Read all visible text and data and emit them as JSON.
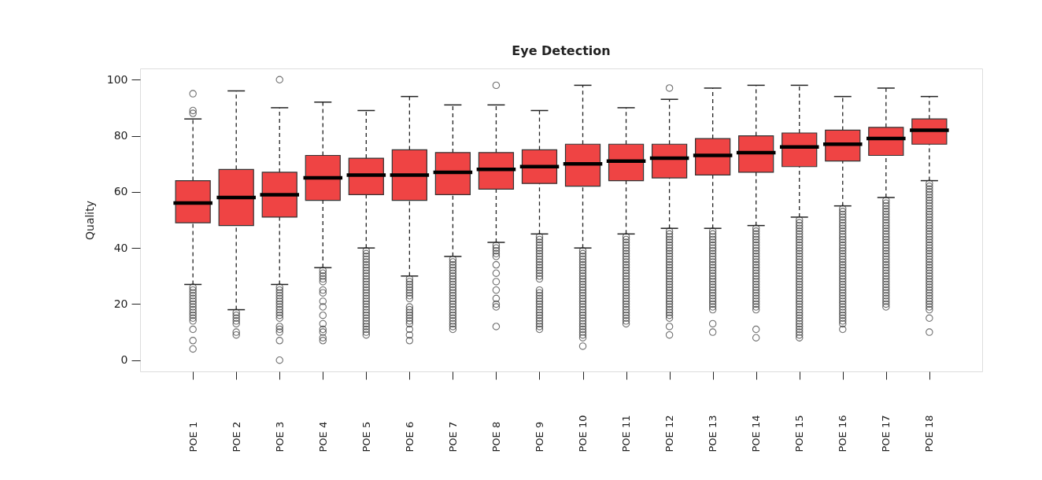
{
  "chart_data": {
    "type": "box",
    "title": "Eye Detection",
    "ylabel": "Quality",
    "categories": [
      "POE 1",
      "POE 2",
      "POE 3",
      "POE 4",
      "POE 5",
      "POE 6",
      "POE 7",
      "POE 8",
      "POE 9",
      "POE 10",
      "POE 11",
      "POE 12",
      "POE 13",
      "POE 14",
      "POE 15",
      "POE 16",
      "POE 17",
      "POE 18"
    ],
    "ylim": [
      -4,
      104
    ],
    "yticks": [
      0,
      20,
      40,
      60,
      80,
      100
    ],
    "grid": false,
    "marker": "circle",
    "series": [
      {
        "color": "#ef4444",
        "boxes": [
          {
            "low": 27,
            "q1": 49,
            "median": 56,
            "q3": 64,
            "high": 86,
            "outliers": [
              95,
              89,
              88,
              26,
              25,
              24,
              23,
              22,
              21,
              20,
              19,
              18,
              17,
              16,
              15,
              14,
              11,
              7,
              4
            ]
          },
          {
            "low": 18,
            "q1": 48,
            "median": 58,
            "q3": 68,
            "high": 96,
            "outliers": [
              17,
              16,
              15,
              14,
              13,
              10,
              9
            ]
          },
          {
            "low": 27,
            "q1": 51,
            "median": 59,
            "q3": 67,
            "high": 90,
            "outliers": [
              100,
              26,
              25,
              24,
              23,
              22,
              21,
              20,
              19,
              18,
              17,
              16,
              15,
              12,
              11,
              10,
              7,
              0
            ]
          },
          {
            "low": 33,
            "q1": 57,
            "median": 65,
            "q3": 73,
            "high": 92,
            "outliers": [
              32,
              31,
              30,
              29,
              28,
              25,
              24,
              21,
              19,
              16,
              13,
              11,
              10,
              8,
              7
            ]
          },
          {
            "low": 40,
            "q1": 59,
            "median": 66,
            "q3": 72,
            "high": 89,
            "outliers": [
              39,
              38,
              37,
              36,
              35,
              34,
              33,
              32,
              31,
              30,
              29,
              28,
              27,
              26,
              25,
              24,
              23,
              22,
              21,
              20,
              19,
              18,
              17,
              16,
              15,
              14,
              13,
              12,
              11,
              10,
              9
            ]
          },
          {
            "low": 30,
            "q1": 57,
            "median": 66,
            "q3": 75,
            "high": 94,
            "outliers": [
              29,
              28,
              27,
              26,
              25,
              24,
              23,
              22,
              19,
              18,
              17,
              16,
              15,
              14,
              13,
              11,
              9,
              7
            ]
          },
          {
            "low": 37,
            "q1": 59,
            "median": 67,
            "q3": 74,
            "high": 91,
            "outliers": [
              36,
              35,
              34,
              33,
              32,
              31,
              30,
              29,
              28,
              27,
              26,
              25,
              24,
              23,
              22,
              21,
              20,
              19,
              18,
              17,
              16,
              15,
              14,
              13,
              12,
              11
            ]
          },
          {
            "low": 42,
            "q1": 61,
            "median": 68,
            "q3": 74,
            "high": 91,
            "outliers": [
              98,
              41,
              40,
              39,
              38,
              37,
              34,
              31,
              28,
              25,
              22,
              20,
              19,
              12
            ]
          },
          {
            "low": 45,
            "q1": 63,
            "median": 69,
            "q3": 75,
            "high": 89,
            "outliers": [
              44,
              43,
              42,
              41,
              40,
              39,
              38,
              37,
              36,
              35,
              34,
              33,
              32,
              31,
              30,
              29,
              25,
              24,
              23,
              22,
              21,
              20,
              19,
              18,
              17,
              16,
              15,
              14,
              13,
              12,
              11
            ]
          },
          {
            "low": 40,
            "q1": 62,
            "median": 70,
            "q3": 77,
            "high": 98,
            "outliers": [
              39,
              38,
              37,
              36,
              35,
              34,
              33,
              32,
              31,
              30,
              29,
              28,
              27,
              26,
              25,
              24,
              23,
              22,
              21,
              20,
              19,
              18,
              17,
              16,
              15,
              14,
              13,
              12,
              11,
              10,
              9,
              8,
              5
            ]
          },
          {
            "low": 45,
            "q1": 64,
            "median": 71,
            "q3": 77,
            "high": 90,
            "outliers": [
              44,
              43,
              42,
              41,
              40,
              39,
              38,
              37,
              36,
              35,
              34,
              33,
              32,
              31,
              30,
              29,
              28,
              27,
              26,
              25,
              24,
              23,
              22,
              21,
              20,
              19,
              18,
              17,
              16,
              15,
              14,
              13
            ]
          },
          {
            "low": 47,
            "q1": 65,
            "median": 72,
            "q3": 77,
            "high": 93,
            "outliers": [
              97,
              46,
              45,
              44,
              43,
              42,
              41,
              40,
              39,
              38,
              37,
              36,
              35,
              34,
              33,
              32,
              31,
              30,
              29,
              28,
              27,
              26,
              25,
              24,
              23,
              22,
              21,
              20,
              19,
              18,
              17,
              16,
              15,
              12,
              9
            ]
          },
          {
            "low": 47,
            "q1": 66,
            "median": 73,
            "q3": 79,
            "high": 97,
            "outliers": [
              46,
              45,
              44,
              43,
              42,
              41,
              40,
              39,
              38,
              37,
              36,
              35,
              34,
              33,
              32,
              31,
              30,
              29,
              28,
              27,
              26,
              25,
              24,
              23,
              22,
              21,
              20,
              19,
              18,
              13,
              10
            ]
          },
          {
            "low": 48,
            "q1": 67,
            "median": 74,
            "q3": 80,
            "high": 98,
            "outliers": [
              47,
              46,
              45,
              44,
              43,
              42,
              41,
              40,
              39,
              38,
              37,
              36,
              35,
              34,
              33,
              32,
              31,
              30,
              29,
              28,
              27,
              26,
              25,
              24,
              23,
              22,
              21,
              20,
              19,
              18,
              11,
              8
            ]
          },
          {
            "low": 51,
            "q1": 69,
            "median": 76,
            "q3": 81,
            "high": 98,
            "outliers": [
              50,
              49,
              48,
              47,
              46,
              45,
              44,
              43,
              42,
              41,
              40,
              39,
              38,
              37,
              36,
              35,
              34,
              33,
              32,
              31,
              30,
              29,
              28,
              27,
              26,
              25,
              24,
              23,
              22,
              21,
              20,
              19,
              18,
              17,
              16,
              15,
              14,
              13,
              12,
              11,
              10,
              9,
              8
            ]
          },
          {
            "low": 55,
            "q1": 71,
            "median": 77,
            "q3": 82,
            "high": 94,
            "outliers": [
              54,
              53,
              52,
              51,
              50,
              49,
              48,
              47,
              46,
              45,
              44,
              43,
              42,
              41,
              40,
              39,
              38,
              37,
              36,
              35,
              34,
              33,
              32,
              31,
              30,
              29,
              28,
              27,
              26,
              25,
              24,
              23,
              22,
              21,
              20,
              19,
              18,
              17,
              16,
              15,
              14,
              13,
              11
            ]
          },
          {
            "low": 58,
            "q1": 73,
            "median": 79,
            "q3": 83,
            "high": 97,
            "outliers": [
              57,
              56,
              55,
              54,
              53,
              52,
              51,
              50,
              49,
              48,
              47,
              46,
              45,
              44,
              43,
              42,
              41,
              40,
              39,
              38,
              37,
              36,
              35,
              34,
              33,
              32,
              31,
              30,
              29,
              28,
              27,
              26,
              25,
              24,
              23,
              22,
              21,
              20,
              19
            ]
          },
          {
            "low": 64,
            "q1": 77,
            "median": 82,
            "q3": 86,
            "high": 94,
            "outliers": [
              63,
              62,
              61,
              60,
              59,
              58,
              57,
              56,
              55,
              54,
              53,
              52,
              51,
              50,
              49,
              48,
              47,
              46,
              45,
              44,
              43,
              42,
              41,
              40,
              39,
              38,
              37,
              36,
              35,
              34,
              33,
              32,
              31,
              30,
              29,
              28,
              27,
              26,
              25,
              24,
              23,
              22,
              21,
              20,
              19,
              18,
              15,
              10
            ]
          }
        ]
      }
    ]
  }
}
